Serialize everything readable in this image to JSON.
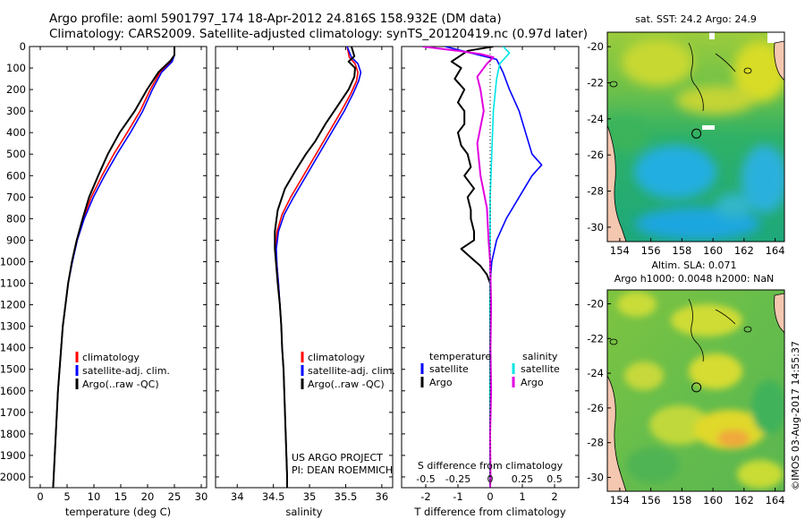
{
  "title_line1": "Argo profile: aoml 5901797_174 18-Apr-2012 24.816S 158.932E (DM data)",
  "title_line2": "Climatology: CARS2009. Satellite-adjusted climatology: synTS_20120419.nc (0.97d later)",
  "colors": {
    "climatology": "#ff0000",
    "satellite": "#0000ff",
    "argo": "#000000",
    "salinity_satellite": "#00e5e5",
    "salinity_argo": "#e000e0"
  },
  "chart_data": [
    {
      "type": "line",
      "name": "temperature-profile",
      "xlabel": "temperature (deg C)",
      "ylabel": "",
      "xlim": [
        -2,
        31
      ],
      "ylim": [
        2050,
        0
      ],
      "xticks": [
        0,
        5,
        10,
        15,
        20,
        25,
        30
      ],
      "yticks": [
        0,
        100,
        200,
        300,
        400,
        500,
        600,
        700,
        800,
        900,
        1000,
        1100,
        1200,
        1300,
        1400,
        1500,
        1600,
        1700,
        1800,
        1900,
        2000
      ],
      "legend": [
        "climatology",
        "satellite-adj. clim.",
        "Argo(..raw -QC)"
      ],
      "legend_position": "bottom-center",
      "series": [
        {
          "name": "climatology",
          "color": "#ff0000",
          "points": [
            [
              25.0,
              0
            ],
            [
              25.0,
              40
            ],
            [
              24.3,
              70
            ],
            [
              22.3,
              120
            ],
            [
              20.5,
              200
            ],
            [
              18.6,
              300
            ],
            [
              16.2,
              400
            ],
            [
              13.7,
              500
            ],
            [
              11.5,
              600
            ],
            [
              9.5,
              700
            ],
            [
              8.0,
              800
            ],
            [
              6.8,
              900
            ],
            [
              5.9,
              1000
            ],
            [
              5.2,
              1100
            ],
            [
              4.7,
              1200
            ],
            [
              4.2,
              1300
            ],
            [
              3.9,
              1400
            ],
            [
              3.6,
              1500
            ],
            [
              3.3,
              1600
            ],
            [
              3.1,
              1700
            ],
            [
              2.9,
              1800
            ],
            [
              2.7,
              1900
            ],
            [
              2.5,
              2000
            ],
            [
              2.4,
              2050
            ]
          ]
        },
        {
          "name": "satellite-adj. clim.",
          "color": "#0000ff",
          "points": [
            [
              25.0,
              0
            ],
            [
              25.0,
              40
            ],
            [
              24.6,
              70
            ],
            [
              22.6,
              120
            ],
            [
              20.9,
              200
            ],
            [
              19.1,
              300
            ],
            [
              16.8,
              400
            ],
            [
              14.3,
              500
            ],
            [
              12.0,
              600
            ],
            [
              9.9,
              700
            ],
            [
              8.2,
              800
            ],
            [
              6.9,
              900
            ],
            [
              6.0,
              1000
            ],
            [
              5.2,
              1100
            ],
            [
              4.7,
              1200
            ],
            [
              4.2,
              1300
            ],
            [
              3.9,
              1400
            ],
            [
              3.6,
              1500
            ],
            [
              3.3,
              1600
            ],
            [
              3.1,
              1700
            ],
            [
              2.9,
              1800
            ],
            [
              2.7,
              1900
            ],
            [
              2.5,
              2000
            ],
            [
              2.4,
              2050
            ]
          ]
        },
        {
          "name": "Argo(..raw -QC)",
          "color": "#000000",
          "points": [
            [
              25.0,
              0
            ],
            [
              25.0,
              40
            ],
            [
              24.3,
              65
            ],
            [
              22.0,
              120
            ],
            [
              19.9,
              200
            ],
            [
              17.6,
              300
            ],
            [
              14.8,
              400
            ],
            [
              12.6,
              500
            ],
            [
              10.8,
              600
            ],
            [
              9.1,
              700
            ],
            [
              7.9,
              800
            ],
            [
              6.8,
              900
            ],
            [
              5.9,
              1000
            ],
            [
              5.2,
              1100
            ],
            [
              4.7,
              1200
            ],
            [
              4.2,
              1300
            ],
            [
              3.9,
              1400
            ],
            [
              3.6,
              1500
            ],
            [
              3.3,
              1600
            ],
            [
              3.1,
              1700
            ],
            [
              2.9,
              1800
            ],
            [
              2.7,
              1900
            ],
            [
              2.5,
              2000
            ],
            [
              2.4,
              2050
            ]
          ]
        }
      ]
    },
    {
      "type": "line",
      "name": "salinity-profile",
      "xlabel": "salinity",
      "xlim": [
        33.7,
        36.15
      ],
      "ylim": [
        2050,
        0
      ],
      "xticks": [
        34,
        34.5,
        35,
        35.5,
        36
      ],
      "legend": [
        "climatology",
        "satellite-adj. clim.",
        "Argo(..raw -QC)"
      ],
      "legend_position": "bottom-center",
      "annotation": [
        "US ARGO PROJECT",
        "PI: DEAN ROEMMICH"
      ],
      "series": [
        {
          "name": "climatology",
          "color": "#ff0000",
          "points": [
            [
              35.52,
              0
            ],
            [
              35.55,
              50
            ],
            [
              35.63,
              80
            ],
            [
              35.67,
              120
            ],
            [
              35.65,
              160
            ],
            [
              35.57,
              220
            ],
            [
              35.44,
              300
            ],
            [
              35.3,
              380
            ],
            [
              35.16,
              460
            ],
            [
              35.02,
              540
            ],
            [
              34.88,
              620
            ],
            [
              34.74,
              700
            ],
            [
              34.62,
              780
            ],
            [
              34.55,
              860
            ],
            [
              34.53,
              940
            ],
            [
              34.55,
              1020
            ],
            [
              34.57,
              1100
            ],
            [
              34.59,
              1200
            ],
            [
              34.61,
              1300
            ],
            [
              34.62,
              1400
            ],
            [
              34.64,
              1500
            ],
            [
              34.65,
              1600
            ],
            [
              34.66,
              1700
            ],
            [
              34.67,
              1800
            ],
            [
              34.68,
              1900
            ],
            [
              34.69,
              2000
            ],
            [
              34.69,
              2050
            ]
          ]
        },
        {
          "name": "satellite-adj. clim.",
          "color": "#0000ff",
          "points": [
            [
              35.52,
              0
            ],
            [
              35.58,
              50
            ],
            [
              35.67,
              80
            ],
            [
              35.71,
              120
            ],
            [
              35.68,
              160
            ],
            [
              35.6,
              220
            ],
            [
              35.48,
              300
            ],
            [
              35.34,
              380
            ],
            [
              35.2,
              460
            ],
            [
              35.06,
              540
            ],
            [
              34.92,
              620
            ],
            [
              34.78,
              700
            ],
            [
              34.65,
              780
            ],
            [
              34.57,
              860
            ],
            [
              34.54,
              940
            ],
            [
              34.55,
              1020
            ],
            [
              34.57,
              1100
            ],
            [
              34.59,
              1200
            ],
            [
              34.61,
              1300
            ],
            [
              34.62,
              1400
            ],
            [
              34.64,
              1500
            ],
            [
              34.65,
              1600
            ],
            [
              34.66,
              1700
            ],
            [
              34.67,
              1800
            ],
            [
              34.68,
              1900
            ],
            [
              34.69,
              2000
            ],
            [
              34.69,
              2050
            ]
          ]
        },
        {
          "name": "Argo(..raw -QC)",
          "color": "#000000",
          "points": [
            [
              35.58,
              0
            ],
            [
              35.62,
              45
            ],
            [
              35.54,
              70
            ],
            [
              35.63,
              100
            ],
            [
              35.62,
              140
            ],
            [
              35.54,
              200
            ],
            [
              35.38,
              280
            ],
            [
              35.22,
              360
            ],
            [
              35.08,
              440
            ],
            [
              34.95,
              500
            ],
            [
              34.8,
              580
            ],
            [
              34.66,
              660
            ],
            [
              34.56,
              760
            ],
            [
              34.52,
              860
            ],
            [
              34.52,
              940
            ],
            [
              34.54,
              1020
            ],
            [
              34.56,
              1100
            ],
            [
              34.59,
              1200
            ],
            [
              34.61,
              1300
            ],
            [
              34.62,
              1400
            ],
            [
              34.64,
              1500
            ],
            [
              34.65,
              1600
            ],
            [
              34.66,
              1700
            ],
            [
              34.67,
              1800
            ],
            [
              34.68,
              1900
            ],
            [
              34.69,
              2000
            ],
            [
              34.69,
              2050
            ]
          ]
        }
      ]
    },
    {
      "type": "line",
      "name": "difference-profile",
      "xlabel": "T difference from climatology",
      "s_axis_label": "S difference from climatology",
      "xlim": [
        -2.75,
        2.75
      ],
      "ylim": [
        2050,
        0
      ],
      "xticks": [
        -2,
        -1,
        0,
        1,
        2
      ],
      "s_ticks": [
        {
          "label": "-0.5",
          "t_pos": -2.0
        },
        {
          "label": "-0.25",
          "t_pos": -1.0
        },
        {
          "label": "0",
          "t_pos": 0
        },
        {
          "label": "0.25",
          "t_pos": 1.0
        },
        {
          "label": "0.5",
          "t_pos": 2.0
        }
      ],
      "legend": {
        "temperature_header": "temperature",
        "salinity_header": "salinity",
        "satellite": "satellite",
        "argo": "Argo"
      },
      "series": [
        {
          "name": "temperature satellite",
          "color": "#0000ff",
          "points": [
            [
              -1.4,
              0
            ],
            [
              -0.6,
              30
            ],
            [
              0.2,
              60
            ],
            [
              0.4,
              120
            ],
            [
              0.6,
              200
            ],
            [
              0.9,
              300
            ],
            [
              1.1,
              400
            ],
            [
              1.3,
              500
            ],
            [
              1.6,
              550
            ],
            [
              1.3,
              600
            ],
            [
              0.9,
              700
            ],
            [
              0.5,
              800
            ],
            [
              0.2,
              900
            ],
            [
              0.05,
              1000
            ],
            [
              0,
              1100
            ],
            [
              0,
              2050
            ]
          ]
        },
        {
          "name": "temperature Argo",
          "color": "#000000",
          "points": [
            [
              0.1,
              0
            ],
            [
              -0.7,
              20
            ],
            [
              -1.2,
              70
            ],
            [
              -0.9,
              100
            ],
            [
              -1.1,
              150
            ],
            [
              -0.8,
              200
            ],
            [
              -1.0,
              260
            ],
            [
              -0.8,
              300
            ],
            [
              -0.8,
              360
            ],
            [
              -1.0,
              400
            ],
            [
              -0.9,
              460
            ],
            [
              -0.7,
              500
            ],
            [
              -0.6,
              560
            ],
            [
              -0.8,
              600
            ],
            [
              -0.5,
              660
            ],
            [
              -0.7,
              700
            ],
            [
              -0.6,
              760
            ],
            [
              -0.6,
              800
            ],
            [
              -0.5,
              860
            ],
            [
              -0.5,
              900
            ],
            [
              -0.9,
              940
            ],
            [
              -0.6,
              980
            ],
            [
              -0.3,
              1020
            ],
            [
              -0.1,
              1060
            ],
            [
              0,
              1100
            ],
            [
              0,
              2050
            ]
          ]
        },
        {
          "name": "salinity satellite",
          "color": "#00e5e5",
          "points": [
            [
              0.4,
              0
            ],
            [
              0.6,
              30
            ],
            [
              0.3,
              80
            ],
            [
              0.2,
              150
            ],
            [
              0.1,
              300
            ],
            [
              0.05,
              500
            ],
            [
              0,
              700
            ],
            [
              0,
              2050
            ]
          ]
        },
        {
          "name": "salinity Argo",
          "color": "#e000e0",
          "points": [
            [
              -2.1,
              0
            ],
            [
              -1.0,
              20
            ],
            [
              -0.3,
              35
            ],
            [
              0.1,
              50
            ],
            [
              -0.1,
              80
            ],
            [
              -0.4,
              140
            ],
            [
              -0.3,
              200
            ],
            [
              -0.2,
              300
            ],
            [
              -0.4,
              450
            ],
            [
              -0.3,
              600
            ],
            [
              -0.1,
              750
            ],
            [
              -0.05,
              900
            ],
            [
              0,
              1000
            ],
            [
              0.03,
              1200
            ],
            [
              0.01,
              1400
            ],
            [
              0.03,
              1600
            ],
            [
              0,
              1800
            ],
            [
              0.01,
              2000
            ],
            [
              0,
              2050
            ]
          ]
        }
      ]
    },
    {
      "type": "heatmap",
      "name": "sst-map",
      "title": "sat. SST: 24.2  Argo: 24.9",
      "xlim": [
        153.2,
        164.6
      ],
      "ylim": [
        -30.8,
        -19.2
      ],
      "xticks": [
        154,
        156,
        158,
        160,
        162,
        164
      ],
      "yticks": [
        -20,
        -22,
        -24,
        -26,
        -28,
        -30
      ],
      "argo_location": [
        158.932,
        -24.816
      ]
    },
    {
      "type": "heatmap",
      "name": "sla-map",
      "title_line1": "Altim. SLA: 0.071",
      "title_line2": "Argo h1000: 0.0048 h2000: NaN",
      "xlim": [
        153.2,
        164.6
      ],
      "ylim": [
        -30.8,
        -19.2
      ],
      "xticks": [
        154,
        156,
        158,
        160,
        162,
        164
      ],
      "yticks": [
        -20,
        -22,
        -24,
        -26,
        -28,
        -30
      ],
      "argo_location": [
        158.932,
        -24.816
      ]
    }
  ],
  "footer_stamp": "©IMOS 03-Aug-2017 14:55:37"
}
